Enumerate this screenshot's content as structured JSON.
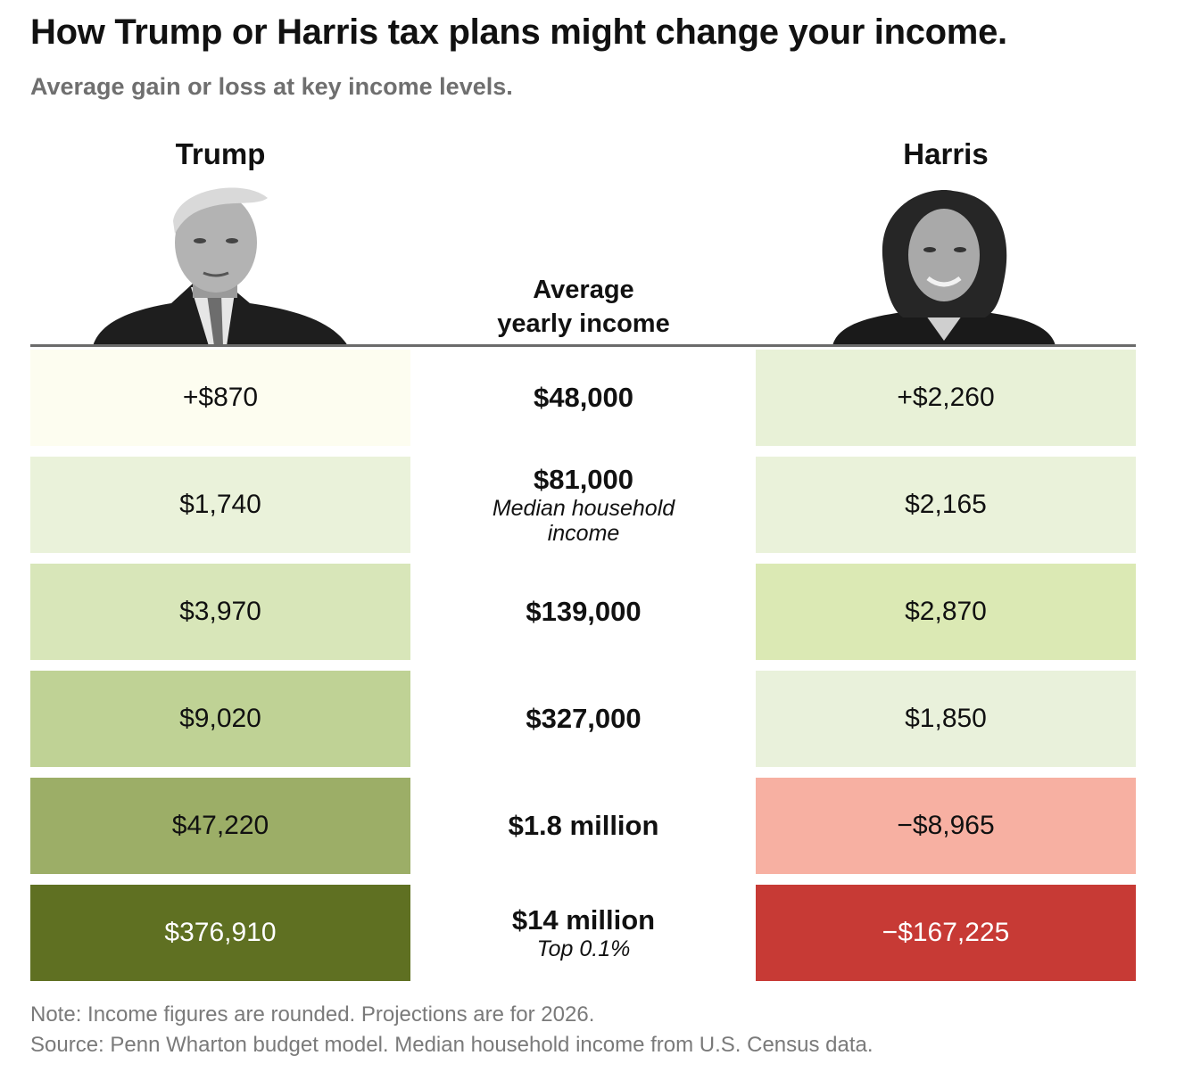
{
  "title": "How Trump or Harris tax plans might change your income.",
  "subtitle": "Average gain or loss at key income levels.",
  "center_header_line1": "Average",
  "center_header_line2": "yearly income",
  "chart_data": {
    "type": "table",
    "columns": [
      "Trump",
      "Average yearly income",
      "Harris"
    ],
    "rows": [
      {
        "income": "$48,000",
        "note": "",
        "trump": "+$870",
        "trump_value": 870,
        "harris": "+$2,260",
        "harris_value": 2260
      },
      {
        "income": "$81,000",
        "note": "Median household income",
        "trump": "$1,740",
        "trump_value": 1740,
        "harris": "$2,165",
        "harris_value": 2165
      },
      {
        "income": "$139,000",
        "note": "",
        "trump": "$3,970",
        "trump_value": 3970,
        "harris": "$2,870",
        "harris_value": 2870
      },
      {
        "income": "$327,000",
        "note": "",
        "trump": "$9,020",
        "trump_value": 9020,
        "harris": "$1,850",
        "harris_value": 1850
      },
      {
        "income": "$1.8 million",
        "note": "",
        "trump": "$47,220",
        "trump_value": 47220,
        "harris": "−$8,965",
        "harris_value": -8965
      },
      {
        "income": "$14 million",
        "note": "Top 0.1%",
        "trump": "$376,910",
        "trump_value": 376910,
        "harris": "−$167,225",
        "harris_value": -167225
      }
    ]
  },
  "colors": {
    "trump_cells": [
      "#fdfdf0",
      "#eaf2da",
      "#d8e6b9",
      "#bfd295",
      "#9cae67",
      "#5f7022"
    ],
    "harris_cells": [
      "#e8f1d7",
      "#eaf2da",
      "#dbe9b4",
      "#e9f1db",
      "#f7b0a2",
      "#c73a35"
    ],
    "light_text": "#ffffff",
    "dark_text": "#111111"
  },
  "footer": {
    "note": "Note: Income figures are rounded. Projections are for 2026.",
    "source": "Source: Penn Wharton budget model. Median household income from U.S. Census data."
  }
}
